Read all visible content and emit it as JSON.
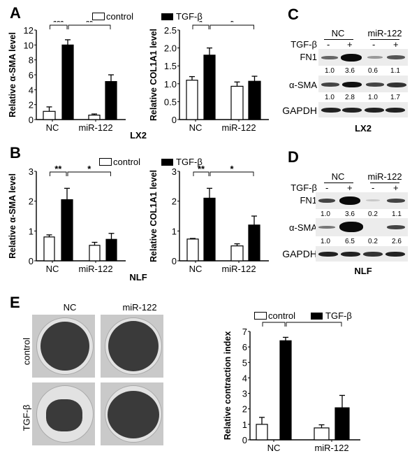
{
  "figure": {
    "panels": {
      "A": {
        "letter": "A",
        "cell_line": "LX2"
      },
      "B": {
        "letter": "B",
        "cell_line": "NLF"
      },
      "C": {
        "letter": "C",
        "cell_line": "LX2"
      },
      "D": {
        "letter": "D",
        "cell_line": "NLF"
      },
      "E": {
        "letter": "E"
      }
    },
    "legend": {
      "control": "control",
      "tgf": "TGF-β"
    },
    "groups": [
      "NC",
      "miR-122"
    ],
    "blots": {
      "C": {
        "groups": [
          "NC",
          "miR-122"
        ],
        "treatment_label": "TGF-β",
        "lanes": [
          "-",
          "+",
          "-",
          "+"
        ],
        "rows": [
          {
            "label": "FN1",
            "quant": [
              "1.0",
              "3.6",
              "0.6",
              "1.1"
            ]
          },
          {
            "label": "α-SMA",
            "quant": [
              "1.0",
              "2.8",
              "1.0",
              "1.7"
            ]
          },
          {
            "label": "GAPDH",
            "quant": []
          }
        ],
        "cell_line": "LX2"
      },
      "D": {
        "groups": [
          "NC",
          "miR-122"
        ],
        "treatment_label": "TGF-β",
        "lanes": [
          "-",
          "+",
          "-",
          "+"
        ],
        "rows": [
          {
            "label": "FN1",
            "quant": [
              "1.0",
              "3.6",
              "0.2",
              "1.1"
            ]
          },
          {
            "label": "α-SMA",
            "quant": [
              "1.0",
              "6.5",
              "0.2",
              "2.6"
            ]
          },
          {
            "label": "GAPDH",
            "quant": []
          }
        ],
        "cell_line": "NLF"
      }
    },
    "gel_images": {
      "col_labels": [
        "NC",
        "miR-122"
      ],
      "row_labels": [
        "control",
        "TGF-β"
      ]
    }
  },
  "chart_data": [
    {
      "id": "A-left",
      "type": "bar",
      "panel": "A",
      "title": "",
      "xlabel": "LX2",
      "ylabel": "Relative α-SMA level",
      "categories": [
        "NC",
        "miR-122"
      ],
      "series": [
        {
          "name": "control",
          "values": [
            1.1,
            0.6
          ],
          "errors": [
            0.6,
            0.15
          ]
        },
        {
          "name": "TGF-β",
          "values": [
            10.0,
            5.1
          ],
          "errors": [
            0.7,
            0.9
          ]
        }
      ],
      "ylim": [
        0,
        12
      ],
      "yticks": [
        0,
        2,
        4,
        6,
        8,
        10,
        12
      ],
      "significance": [
        {
          "between": "NC control vs NC TGF-β",
          "label": "***"
        },
        {
          "between": "NC TGF-β vs miR-122 TGF-β",
          "label": "**"
        }
      ],
      "legend_position": "top"
    },
    {
      "id": "A-right",
      "type": "bar",
      "panel": "A",
      "title": "",
      "xlabel": "LX2",
      "ylabel": "Relative COL1A1 level",
      "categories": [
        "NC",
        "miR-122"
      ],
      "series": [
        {
          "name": "control",
          "values": [
            1.1,
            0.93
          ],
          "errors": [
            0.1,
            0.12
          ]
        },
        {
          "name": "TGF-β",
          "values": [
            1.8,
            1.07
          ],
          "errors": [
            0.2,
            0.14
          ]
        }
      ],
      "ylim": [
        0,
        2.5
      ],
      "yticks": [
        0,
        0.5,
        1.0,
        1.5,
        2.0,
        2.5
      ],
      "significance": [
        {
          "between": "NC control vs NC TGF-β",
          "label": "*"
        },
        {
          "between": "NC TGF-β vs miR-122 TGF-β",
          "label": "*"
        }
      ]
    },
    {
      "id": "B-left",
      "type": "bar",
      "panel": "B",
      "title": "",
      "xlabel": "NLF",
      "ylabel": "Relative α-SMA level",
      "categories": [
        "NC",
        "miR-122"
      ],
      "series": [
        {
          "name": "control",
          "values": [
            0.8,
            0.52
          ],
          "errors": [
            0.07,
            0.1
          ]
        },
        {
          "name": "TGF-β",
          "values": [
            2.05,
            0.72
          ],
          "errors": [
            0.38,
            0.2
          ]
        }
      ],
      "ylim": [
        0,
        3
      ],
      "yticks": [
        0,
        1,
        2,
        3
      ],
      "significance": [
        {
          "between": "NC control vs NC TGF-β",
          "label": "**"
        },
        {
          "between": "NC TGF-β vs miR-122 TGF-β",
          "label": "*"
        }
      ],
      "legend_position": "top"
    },
    {
      "id": "B-right",
      "type": "bar",
      "panel": "B",
      "title": "",
      "xlabel": "NLF",
      "ylabel": "Relative COL1A1 level",
      "categories": [
        "NC",
        "miR-122"
      ],
      "series": [
        {
          "name": "control",
          "values": [
            0.73,
            0.5
          ],
          "errors": [
            0.02,
            0.07
          ]
        },
        {
          "name": "TGF-β",
          "values": [
            2.1,
            1.2
          ],
          "errors": [
            0.33,
            0.3
          ]
        }
      ],
      "ylim": [
        0,
        3
      ],
      "yticks": [
        0,
        1,
        2,
        3
      ],
      "significance": [
        {
          "between": "NC control vs NC TGF-β",
          "label": "**"
        },
        {
          "between": "NC TGF-β vs miR-122 TGF-β",
          "label": "*"
        }
      ]
    },
    {
      "id": "E-right",
      "type": "bar",
      "panel": "E",
      "title": "",
      "xlabel": "",
      "ylabel": "Relative contraction index",
      "categories": [
        "NC",
        "miR-122"
      ],
      "series": [
        {
          "name": "control",
          "values": [
            1.0,
            0.77
          ],
          "errors": [
            0.45,
            0.2
          ]
        },
        {
          "name": "TGF-β",
          "values": [
            6.4,
            2.07
          ],
          "errors": [
            0.22,
            0.8
          ]
        }
      ],
      "ylim": [
        0,
        7
      ],
      "yticks": [
        0,
        1,
        2,
        3,
        4,
        5,
        6,
        7
      ],
      "significance": [
        {
          "between": "NC control vs NC TGF-β",
          "label": "***"
        },
        {
          "between": "NC TGF-β vs miR-122 TGF-β",
          "label": "***"
        }
      ],
      "legend_position": "top"
    }
  ]
}
